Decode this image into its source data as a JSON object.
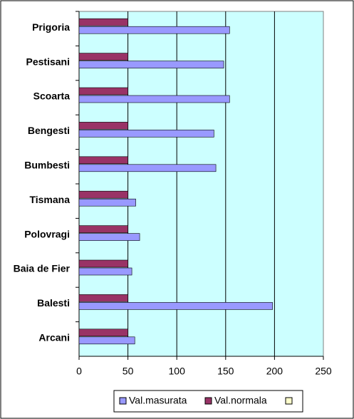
{
  "chart_data": {
    "type": "bar",
    "orientation": "horizontal",
    "categories": [
      "Prigoria",
      "Pestisani",
      "Scoarta",
      "Bengesti",
      "Bumbesti",
      "Tismana",
      "Polovragi",
      "Baia de Fier",
      "Balesti",
      "Arcani"
    ],
    "series": [
      {
        "name": "Val.masurata",
        "color": "#9999ff",
        "values": [
          154,
          148,
          154,
          138,
          140,
          58,
          62,
          54,
          198,
          57
        ]
      },
      {
        "name": "Val.normala",
        "color": "#993366",
        "values": [
          50,
          50,
          50,
          50,
          50,
          50,
          50,
          50,
          50,
          50
        ]
      }
    ],
    "xlim": [
      0,
      250
    ],
    "xticks": [
      0,
      50,
      100,
      150,
      200,
      250
    ],
    "grid": true,
    "plot_background": "#ccffff",
    "legend": "bottom"
  }
}
